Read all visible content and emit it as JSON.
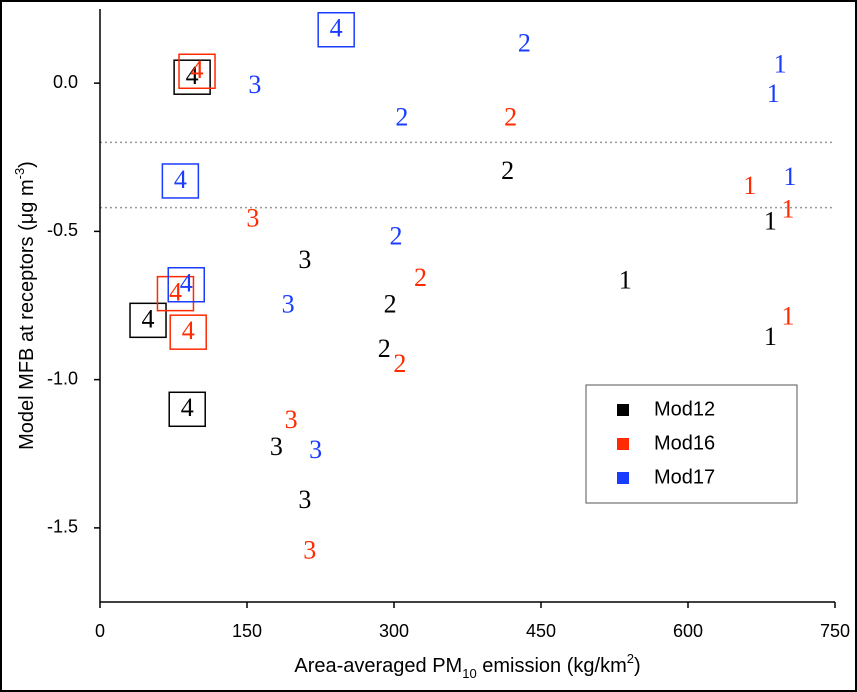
{
  "chart_data": {
    "type": "scatter",
    "x_label": [
      {
        "text": "Area-averaged PM"
      },
      {
        "text": "10",
        "shift": "sub"
      },
      {
        "text": " emission (kg/km"
      },
      {
        "text": "2",
        "shift": "super"
      },
      {
        "text": ")"
      }
    ],
    "y_label": [
      {
        "text": "Model MFB at receptors (μg m"
      },
      {
        "text": "-3",
        "shift": "super"
      },
      {
        "text": ")"
      }
    ],
    "xlim": [
      0,
      750
    ],
    "ylim": [
      -1.75,
      0.25
    ],
    "xticks": [
      0,
      150,
      300,
      450,
      600,
      750
    ],
    "yticks": [
      -1.5,
      {
        "value": -1.0,
        "label": "-1.0"
      },
      -0.5,
      {
        "value": 0.0,
        "label": "0.0"
      }
    ],
    "reference_lines": [
      -0.2,
      -0.42
    ],
    "boxed_label": "4",
    "legend": "lower right",
    "series": [
      {
        "name": "Mod12",
        "color": "#000000",
        "x": [
          94,
          49,
          89,
          209,
          180,
          209,
          416,
          296,
          290,
          536,
          684,
          684
        ],
        "values": [
          0.02,
          -0.8,
          -1.1,
          -0.6,
          -1.23,
          -1.41,
          -0.3,
          -0.75,
          -0.9,
          -0.67,
          -0.47,
          -0.86
        ],
        "labels": [
          "4",
          "4",
          "4",
          "3",
          "3",
          "3",
          "2",
          "2",
          "2",
          "1",
          "1",
          "1"
        ]
      },
      {
        "name": "Mod16",
        "color": "#ff2a00",
        "x": [
          99,
          77,
          90,
          156,
          195,
          214,
          419,
          327,
          306,
          663,
          702,
          702
        ],
        "values": [
          0.04,
          -0.71,
          -0.84,
          -0.46,
          -1.14,
          -1.58,
          -0.12,
          -0.66,
          -0.95,
          -0.35,
          -0.43,
          -0.79
        ],
        "labels": [
          "4",
          "4",
          "4",
          "3",
          "3",
          "3",
          "2",
          "2",
          "2",
          "1",
          "1",
          "1"
        ]
      },
      {
        "name": "Mod17",
        "color": "#1a3cff",
        "x": [
          241,
          82,
          88,
          158,
          192,
          220,
          433,
          308,
          302,
          694,
          687,
          704
        ],
        "values": [
          0.18,
          -0.33,
          -0.68,
          -0.01,
          -0.75,
          -1.24,
          0.13,
          -0.12,
          -0.52,
          0.06,
          -0.04,
          -0.32
        ],
        "labels": [
          "4",
          "4",
          "4",
          "3",
          "3",
          "3",
          "2",
          "2",
          "2",
          "1",
          "1",
          "1"
        ]
      }
    ]
  }
}
